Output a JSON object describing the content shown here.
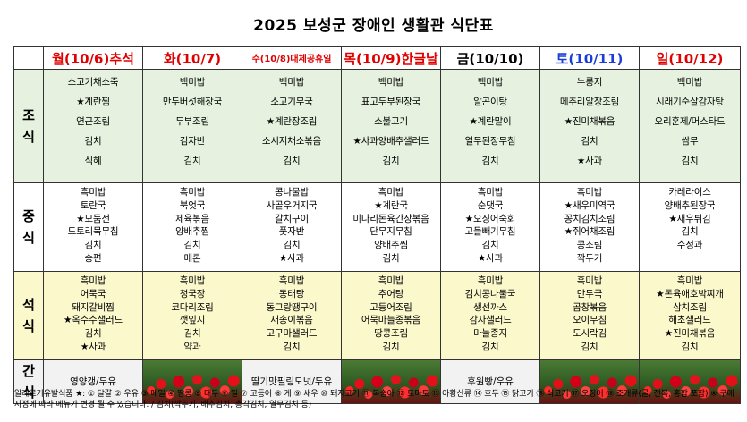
{
  "title": "2025 보성군 장애인 생활관 식단표",
  "days": [
    {
      "label": "월(10/6)추석",
      "color": "red",
      "size": "big"
    },
    {
      "label": "화(10/7)",
      "color": "red",
      "size": "big"
    },
    {
      "label": "수(10/8)대체공휴일",
      "color": "red",
      "size": "small"
    },
    {
      "label": "목(10/9)한글날",
      "color": "red",
      "size": "big"
    },
    {
      "label": "금(10/10)",
      "color": "black",
      "size": "big"
    },
    {
      "label": "토(10/11)",
      "color": "blue",
      "size": "big"
    },
    {
      "label": "일(10/12)",
      "color": "red",
      "size": "big"
    }
  ],
  "meals": {
    "breakfast": {
      "label": "조\n식",
      "days": [
        [
          "소고기채소죽",
          "★계란찜",
          "연근조림",
          "김치",
          "식혜"
        ],
        [
          "백미밥",
          "만두버섯해장국",
          "두부조림",
          "김자반",
          "김치"
        ],
        [
          "백미밥",
          "소고기무국",
          "★계란장조림",
          "소시지채소볶음",
          "김치"
        ],
        [
          "백미밥",
          "표고두부된장국",
          "소불고기",
          "★사과양배추샐러드",
          "김치"
        ],
        [
          "백미밥",
          "알곤이탕",
          "★계란말이",
          "열무된장무침",
          "김치"
        ],
        [
          "누룽지",
          "메추리알장조림",
          "★진미채볶음",
          "김치",
          "★사과"
        ],
        [
          "백미밥",
          "시래기순살감자탕",
          "오리훈제/머스타드",
          "쌈무",
          "김치"
        ]
      ]
    },
    "lunch": {
      "label": "중\n식",
      "days": [
        [
          "흑미밥",
          "토란국",
          "★모둠전",
          "도토리묵무침",
          "김치",
          "송편"
        ],
        [
          "흑미밥",
          "북엇국",
          "제육볶음",
          "양배추찜",
          "김치",
          "메론"
        ],
        [
          "콩나물밥",
          "사골우거지국",
          "갈치구이",
          "풋자반",
          "김치",
          "★사과"
        ],
        [
          "흑미밥",
          "★계란국",
          "미나리돈육간장볶음",
          "단무지무침",
          "양배추찜",
          "김치"
        ],
        [
          "흑미밥",
          "순댓국",
          "★오징어숙회",
          "고들빼기무침",
          "김치",
          "★사과"
        ],
        [
          "흑미밥",
          "★새우미역국",
          "꽁치김치조림",
          "★쥐어채조림",
          "콩조림",
          "깍두기"
        ],
        [
          "카레라이스",
          "양배추된장국",
          "★새우튀김",
          "김치",
          "수정과"
        ]
      ]
    },
    "dinner": {
      "label": "석\n식",
      "days": [
        [
          "흑미밥",
          "어묵국",
          "돼지갈비찜",
          "★옥수수샐러드",
          "김치",
          "★사과"
        ],
        [
          "흑미밥",
          "청국장",
          "코다리조림",
          "깻잎지",
          "김치",
          "약과"
        ],
        [
          "흑미밥",
          "동태탕",
          "동그랑땡구이",
          "새송이볶음",
          "고구마샐러드",
          "김치"
        ],
        [
          "흑미밥",
          "추어탕",
          "고등어조림",
          "어묵마늘종볶음",
          "땅콩조림",
          "김치"
        ],
        [
          "흑미밥",
          "김치콩나물국",
          "생선까스",
          "감자샐러드",
          "마늘종지",
          "김치"
        ],
        [
          "흑미밥",
          "만두국",
          "곱창볶음",
          "오이무침",
          "도시락김",
          "김치"
        ],
        [
          "흑미밥",
          "★돈육애호박찌개",
          "삼치조림",
          "해초샐러드",
          "★진미채볶음",
          "김치"
        ]
      ]
    },
    "snack": {
      "label": "간\n식",
      "days": [
        "영양갱/두유",
        "",
        "딸기맛필링도넛/두유",
        "",
        "후원빵/우유",
        "",
        ""
      ]
    }
  },
  "footnote": "알레르기유발식품 ★: ① 달걀 ② 우유 ③ 메밀 ④ 땅콩 ⑤ 대두 ⑥ 밀 ⑦ 고등어 ⑧ 게 ⑨ 새우 ⑩ 돼지고기 ⑪ 복숭아 ⑫ 토마토 ⑬ 아황산류 ⑭ 호두 ⑮ 닭고기 ⑯ 쇠고기 ⑰ 오징어 ⑱ 조개류(굴, 전복, 홍합 포함) ※ 구매사정에 따라 메뉴가 변경 될 수 있습니다.  / 김치(깍두기, 배추김치, 총각김치, 열무김치 등)",
  "colors": {
    "red": "#e00000",
    "blue": "#1a3cd8",
    "breakfast_bg": "#e6f2df",
    "dinner_bg": "#fbf8cc",
    "snack_bg": "#f2f2f2"
  }
}
